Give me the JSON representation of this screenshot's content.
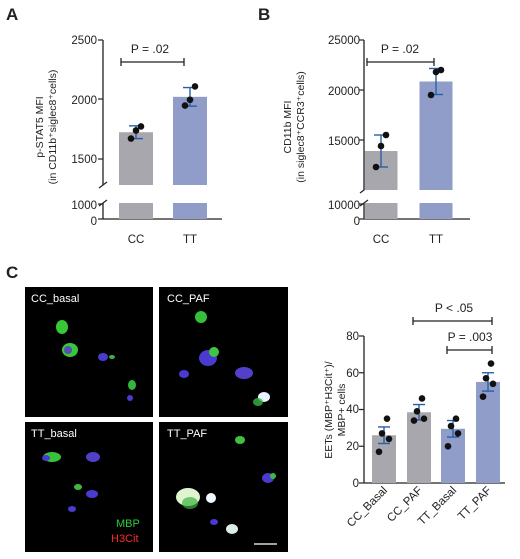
{
  "colors": {
    "cc": "#a7a7ad",
    "tt": "#8f9dc8",
    "error": "#2a5fa8",
    "axis": "#222222"
  },
  "panels": {
    "A": {
      "letter": "A"
    },
    "B": {
      "letter": "B"
    },
    "C": {
      "letter": "C"
    }
  },
  "micrographs": {
    "labels": [
      "CC_basal",
      "CC_PAF",
      "TT_basal",
      "TT_PAF"
    ],
    "stains": {
      "mbp": "MBP",
      "h3cit": "H3Cit"
    },
    "stain_colors": {
      "mbp": "#2ecc40",
      "h3cit": "#ff2a2a"
    }
  },
  "chart_data": [
    {
      "id": "A",
      "type": "bar",
      "categories": [
        "CC",
        "TT"
      ],
      "values": [
        1705,
        2010
      ],
      "errors": [
        55,
        80
      ],
      "points": [
        [
          1650,
          1720,
          1755
        ],
        [
          1935,
          1985,
          2100
        ]
      ],
      "ylabel_lines": [
        "p-STAT5 MFI",
        "(in CD11b⁺siglec8⁺cells)"
      ],
      "yticks_upper": [
        "1500",
        "2000",
        "2500"
      ],
      "yticks_lower": [
        "0",
        "1000"
      ],
      "ylim_upper": [
        1250,
        2500
      ],
      "broken_axis": true,
      "annotation": "P = .02"
    },
    {
      "id": "B",
      "type": "bar",
      "categories": [
        "CC",
        "TT"
      ],
      "values": [
        13900,
        20850
      ],
      "errors": [
        1600,
        1300
      ],
      "points": [
        [
          12300,
          14400,
          15500
        ],
        [
          19500,
          21800,
          22000
        ]
      ],
      "ylabel_lines": [
        "CD11b MFI",
        "(in siglec8⁺CCR3⁺cells)"
      ],
      "yticks_upper": [
        "15000",
        "20000",
        "25000"
      ],
      "yticks_lower": [
        "0",
        "10000"
      ],
      "ylim_upper": [
        10000,
        25000
      ],
      "broken_axis": true,
      "annotation": "P = .02"
    },
    {
      "id": "C",
      "type": "bar",
      "categories": [
        "CC_Basal",
        "CC_PAF",
        "TT_Basal",
        "TT_PAF"
      ],
      "values": [
        26,
        38.5,
        29.5,
        55
      ],
      "errors": [
        4.5,
        4.2,
        4.5,
        5
      ],
      "points": [
        [
          17,
          24,
          27,
          35
        ],
        [
          34,
          35,
          39,
          46
        ],
        [
          20,
          27,
          31,
          35
        ],
        [
          47,
          54,
          57,
          65
        ]
      ],
      "ylabel_lines": [
        "EETs (MBP⁺H3Cit⁺)/",
        "MBP+ cells"
      ],
      "yticks": [
        "0",
        "20",
        "40",
        "60",
        "80"
      ],
      "ylim": [
        0,
        80
      ],
      "annotations": [
        "P < .05",
        "P = .003"
      ]
    }
  ]
}
